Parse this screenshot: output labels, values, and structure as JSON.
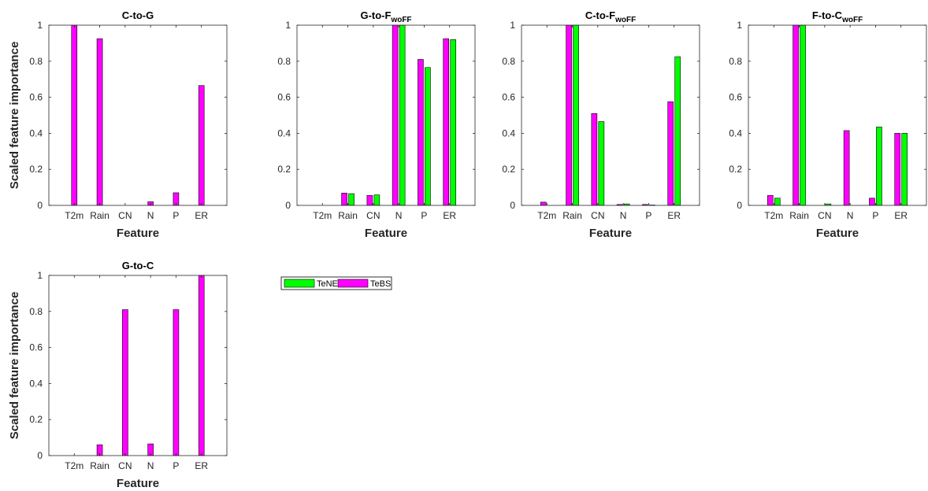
{
  "figure": {
    "legend_placement": "right of bottom-left subplot",
    "colors": {
      "TeNE": "#00ff00",
      "TeBS": "#ff00ff"
    }
  },
  "chart_data": [
    {
      "type": "bar",
      "title": "C-to-G",
      "title_sub": "",
      "xlabel": "Feature",
      "ylabel": "Scaled feature importance",
      "categories": [
        "T2m",
        "Rain",
        "CN",
        "N",
        "P",
        "ER"
      ],
      "ylim": [
        0,
        1
      ],
      "yticks": [
        "0",
        "0.2",
        "0.4",
        "0.6",
        "0.8",
        "1"
      ],
      "series": [
        {
          "name": "TeBS",
          "color": "#ff00ff",
          "values": [
            1.0,
            0.925,
            0.0,
            0.02,
            0.07,
            0.665
          ]
        }
      ]
    },
    {
      "type": "bar",
      "title": "G-to-F",
      "title_sub": "woFF",
      "xlabel": "Feature",
      "ylabel": "",
      "categories": [
        "T2m",
        "Rain",
        "CN",
        "N",
        "P",
        "ER"
      ],
      "ylim": [
        0,
        1
      ],
      "yticks": [
        "0",
        "0.2",
        "0.4",
        "0.6",
        "0.8",
        "1"
      ],
      "series": [
        {
          "name": "TeBS",
          "color": "#ff00ff",
          "values": [
            0.0,
            0.068,
            0.055,
            1.0,
            0.81,
            0.925
          ]
        },
        {
          "name": "TeNE",
          "color": "#00ff00",
          "values": [
            0.0,
            0.065,
            0.058,
            1.0,
            0.765,
            0.92
          ]
        }
      ]
    },
    {
      "type": "bar",
      "title": "C-to-F",
      "title_sub": "woFF",
      "xlabel": "Feature",
      "ylabel": "",
      "categories": [
        "T2m",
        "Rain",
        "CN",
        "N",
        "P",
        "ER"
      ],
      "ylim": [
        0,
        1
      ],
      "yticks": [
        "0",
        "0.2",
        "0.4",
        "0.6",
        "0.8",
        "1"
      ],
      "series": [
        {
          "name": "TeBS",
          "color": "#ff00ff",
          "values": [
            0.018,
            1.0,
            0.51,
            0.005,
            0.005,
            0.575
          ]
        },
        {
          "name": "TeNE",
          "color": "#00ff00",
          "values": [
            0.0,
            1.0,
            0.465,
            0.008,
            0.002,
            0.825
          ]
        }
      ]
    },
    {
      "type": "bar",
      "title": "F-to-C",
      "title_sub": "woFF",
      "xlabel": "Feature",
      "ylabel": "",
      "categories": [
        "T2m",
        "Rain",
        "CN",
        "N",
        "P",
        "ER"
      ],
      "ylim": [
        0,
        1
      ],
      "yticks": [
        "0",
        "0.2",
        "0.4",
        "0.6",
        "0.8",
        "1"
      ],
      "series": [
        {
          "name": "TeBS",
          "color": "#ff00ff",
          "values": [
            0.055,
            1.0,
            0.0,
            0.415,
            0.04,
            0.4
          ]
        },
        {
          "name": "TeNE",
          "color": "#00ff00",
          "values": [
            0.04,
            1.0,
            0.008,
            0.0,
            0.435,
            0.4
          ]
        }
      ]
    },
    {
      "type": "bar",
      "title": "G-to-C",
      "title_sub": "",
      "xlabel": "Feature",
      "ylabel": "Scaled feature importance",
      "categories": [
        "T2m",
        "Rain",
        "CN",
        "N",
        "P",
        "ER"
      ],
      "ylim": [
        0,
        1
      ],
      "yticks": [
        "0",
        "0.2",
        "0.4",
        "0.6",
        "0.8",
        "1"
      ],
      "series": [
        {
          "name": "TeBS",
          "color": "#ff00ff",
          "values": [
            0.0,
            0.06,
            0.81,
            0.065,
            0.81,
            1.0
          ]
        }
      ]
    }
  ],
  "legend": {
    "items": [
      {
        "label": "TeNE",
        "color": "#00ff00"
      },
      {
        "label": "TeBS",
        "color": "#ff00ff"
      }
    ]
  }
}
